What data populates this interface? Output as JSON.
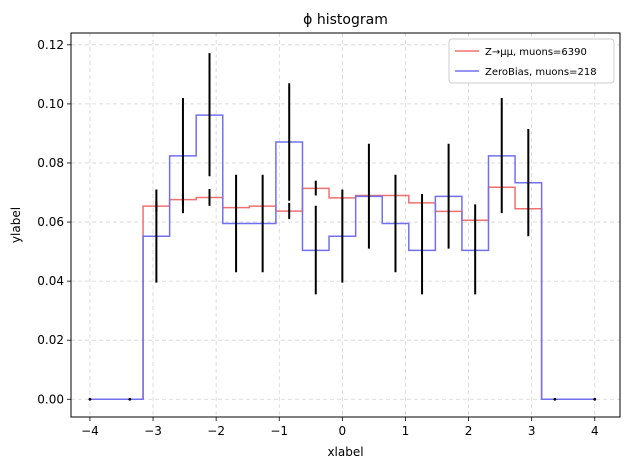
{
  "chart_data": {
    "type": "histogram",
    "title": "ϕ histogram",
    "xlabel": "xlabel",
    "ylabel": "ylabel",
    "xlim": [
      -4.3,
      4.4
    ],
    "ylim": [
      -0.006,
      0.124
    ],
    "xticks": [
      -4,
      -3,
      -2,
      -1,
      0,
      1,
      2,
      3,
      4
    ],
    "xtick_labels": [
      "−4",
      "−3",
      "−2",
      "−1",
      "0",
      "1",
      "2",
      "3",
      "4"
    ],
    "yticks": [
      0.0,
      0.02,
      0.04,
      0.06,
      0.08,
      0.1,
      0.12
    ],
    "ytick_labels": [
      "0.00",
      "0.02",
      "0.04",
      "0.06",
      "0.08",
      "0.10",
      "0.12"
    ],
    "grid": true,
    "legend_position": "top-right",
    "bin_edges": [
      -4.0,
      -3.158,
      -2.737,
      -2.316,
      -1.895,
      -1.474,
      -1.053,
      -0.632,
      -0.211,
      0.211,
      0.632,
      1.053,
      1.474,
      1.895,
      2.316,
      2.737,
      3.158,
      4.0
    ],
    "series": [
      {
        "name": "Z→μμ, muons=6390",
        "color": "#f07070",
        "values": [
          0.0,
          0.0654,
          0.0676,
          0.0683,
          0.0649,
          0.0654,
          0.0637,
          0.0714,
          0.0682,
          0.069,
          0.069,
          0.0665,
          0.0636,
          0.0606,
          0.0718,
          0.0645,
          0.0
        ]
      },
      {
        "name": "ZeroBias, muons=218",
        "color": "#7070f0",
        "values": [
          0.0,
          0.0552,
          0.0824,
          0.0962,
          0.0595,
          0.0595,
          0.0871,
          0.0504,
          0.0552,
          0.0687,
          0.0595,
          0.0504,
          0.0687,
          0.0504,
          0.0824,
          0.0733,
          0.0
        ]
      }
    ],
    "error_bars": [
      {
        "x": -4.0,
        "low": 0.0,
        "high": 0.0
      },
      {
        "x": -3.368,
        "low": 0.0,
        "high": 0.0
      },
      {
        "x": -2.947,
        "low": 0.0635,
        "high": 0.0673
      },
      {
        "x": -2.947,
        "low": 0.0395,
        "high": 0.071
      },
      {
        "x": -2.526,
        "low": 0.0657,
        "high": 0.0695
      },
      {
        "x": -2.526,
        "low": 0.063,
        "high": 0.102
      },
      {
        "x": -2.105,
        "low": 0.0655,
        "high": 0.0712
      },
      {
        "x": -2.105,
        "low": 0.0755,
        "high": 0.1172
      },
      {
        "x": -1.684,
        "low": 0.043,
        "high": 0.076
      },
      {
        "x": -1.263,
        "low": 0.043,
        "high": 0.076
      },
      {
        "x": -0.842,
        "low": 0.061,
        "high": 0.0665
      },
      {
        "x": -0.842,
        "low": 0.0672,
        "high": 0.107
      },
      {
        "x": -0.421,
        "low": 0.069,
        "high": 0.074
      },
      {
        "x": -0.421,
        "low": 0.0355,
        "high": 0.0655
      },
      {
        "x": 0.0,
        "low": 0.0395,
        "high": 0.071
      },
      {
        "x": 0.421,
        "low": 0.051,
        "high": 0.0865
      },
      {
        "x": 0.842,
        "low": 0.043,
        "high": 0.076
      },
      {
        "x": 1.263,
        "low": 0.0355,
        "high": 0.0695
      },
      {
        "x": 1.684,
        "low": 0.051,
        "high": 0.0865
      },
      {
        "x": 2.105,
        "low": 0.0355,
        "high": 0.066
      },
      {
        "x": 2.526,
        "low": 0.063,
        "high": 0.102
      },
      {
        "x": 2.947,
        "low": 0.0552,
        "high": 0.0915
      },
      {
        "x": 3.368,
        "low": 0.0,
        "high": 0.0
      },
      {
        "x": 4.0,
        "low": 0.0,
        "high": 0.0
      }
    ]
  }
}
